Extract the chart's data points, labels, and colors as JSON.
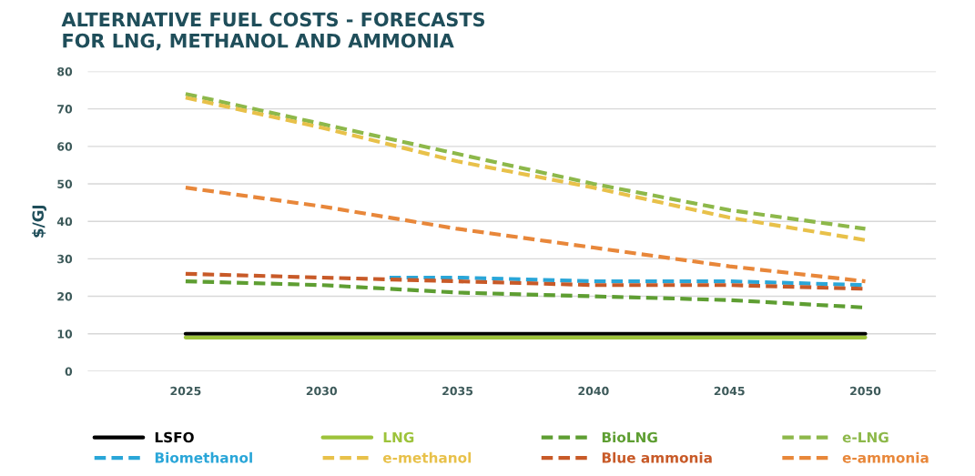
{
  "chart_data": {
    "type": "line",
    "title": "ALTERNATIVE FUEL COSTS - FORECASTS\nFOR LNG, METHANOL AND AMMONIA",
    "ylabel": "$/GJ",
    "x": [
      2025,
      2030,
      2035,
      2040,
      2045,
      2050
    ],
    "xlim": [
      2021.4,
      2052.6
    ],
    "xticks": [
      2025,
      2030,
      2035,
      2040,
      2045,
      2050
    ],
    "ylim": [
      0,
      80
    ],
    "yticks": [
      0,
      10,
      20,
      30,
      40,
      50,
      60,
      70,
      80
    ],
    "grid": "y",
    "legend": "bottom",
    "series": [
      {
        "name": "LSFO",
        "color": "#000000",
        "line_style": "solid",
        "values": [
          10,
          10,
          10,
          10,
          10,
          10
        ]
      },
      {
        "name": "LNG",
        "color": "#9dc33b",
        "line_style": "solid",
        "values": [
          9,
          9,
          9,
          9,
          9,
          9
        ]
      },
      {
        "name": "BioLNG",
        "color": "#5e9e32",
        "line_style": "dashed",
        "values": [
          24,
          23,
          21,
          20,
          19,
          17
        ]
      },
      {
        "name": "e-LNG",
        "color": "#8db84a",
        "line_style": "dashed",
        "values": [
          74,
          66,
          58,
          50,
          43,
          38
        ]
      },
      {
        "name": "Biomethanol",
        "color": "#2aa6d8",
        "line_style": "dashed",
        "x": [
          2032.5,
          2035,
          2040,
          2045,
          2050
        ],
        "values": [
          25,
          25,
          24,
          24,
          23
        ]
      },
      {
        "name": "e-methanol",
        "color": "#e8c14a",
        "line_style": "dashed",
        "values": [
          73,
          65,
          56,
          49,
          41,
          35
        ]
      },
      {
        "name": "Blue ammonia",
        "color": "#c85a28",
        "line_style": "dashed",
        "values": [
          26,
          25,
          24,
          23,
          23,
          22
        ]
      },
      {
        "name": "e-ammonia",
        "color": "#e8873a",
        "line_style": "dashed",
        "values": [
          49,
          44,
          38,
          33,
          28,
          24
        ]
      }
    ]
  }
}
